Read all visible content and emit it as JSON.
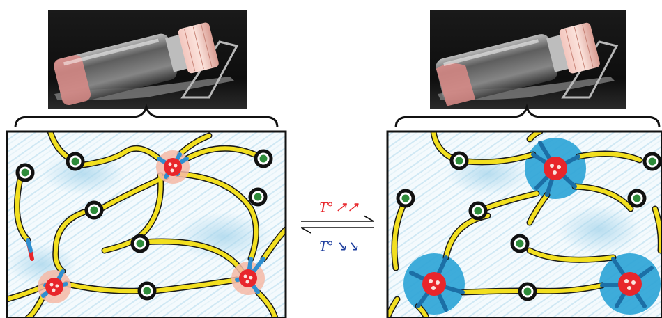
{
  "left_panel": {
    "state": "heated-gel",
    "photo": "vial-with-pink-gel",
    "network": "polymer-network-small-cores"
  },
  "right_panel": {
    "state": "cooled",
    "photo": "vial-with-pink-gel",
    "network": "polymer-network-swollen-cores"
  },
  "transition": {
    "heating_symbol": "T°",
    "heating_arrows": "↗↗",
    "cooling_symbol": "T°",
    "cooling_arrows": "↘↘"
  },
  "colors": {
    "heating": "#e8262b",
    "cooling": "#1f3f9e",
    "polymer_chain": "#f2df1f",
    "chain_end": "#2f8fd0",
    "core": "#e8262b",
    "shell": "#2aa3d6",
    "crosslink_ring": "#111111",
    "crosslink_center": "#2e8b3a"
  }
}
